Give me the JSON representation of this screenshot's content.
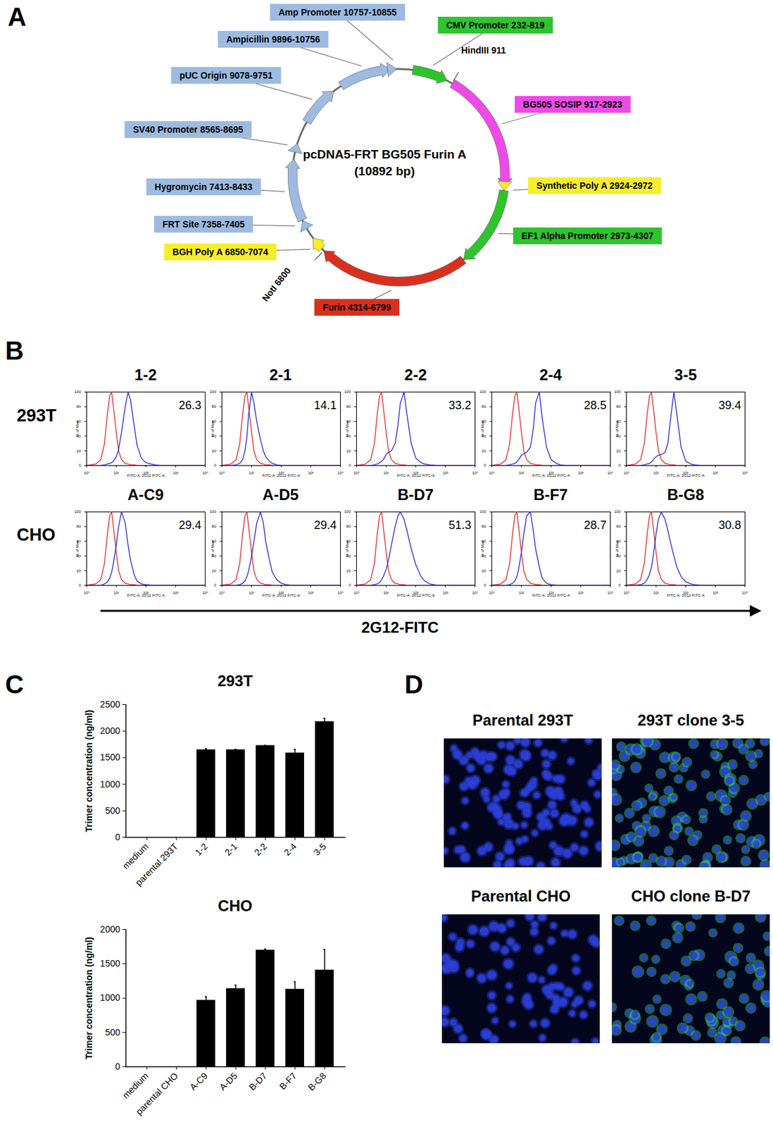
{
  "panel_labels": [
    "A",
    "B",
    "C",
    "D"
  ],
  "plasmid": {
    "name": "pcDNA5-FRT BG505 Furin A",
    "length": 10892,
    "length_label": "(10892 bp)",
    "features": [
      {
        "label": "CMV Promoter 232-819",
        "start": 232,
        "end": 819,
        "color": "#2ec42e"
      },
      {
        "label": "BG505 SOSIP 917-2923",
        "start": 917,
        "end": 2923,
        "color": "#ee4ae8"
      },
      {
        "label": "Synthetic Poly A 2924-2972",
        "start": 2924,
        "end": 2972,
        "color": "#f7ee2a"
      },
      {
        "label": "EF1 Alpha Promoter 2973-4307",
        "start": 2973,
        "end": 4307,
        "color": "#2ec42e"
      },
      {
        "label": "Furin 4314-6799",
        "start": 4314,
        "end": 6799,
        "color": "#d9301e"
      },
      {
        "label": "BGH Poly A 6850-7074",
        "start": 6850,
        "end": 7074,
        "color": "#f7ee2a"
      },
      {
        "label": "FRT Site 7358-7405",
        "start": 7358,
        "end": 7405,
        "color": "#9dbbe0"
      },
      {
        "label": "Hygromycin 7413-8433",
        "start": 7413,
        "end": 8433,
        "color": "#9dbbe0"
      },
      {
        "label": "SV40 Promoter 8565-8695",
        "start": 8565,
        "end": 8695,
        "color": "#9dbbe0"
      },
      {
        "label": "pUC Origin 9078-9751",
        "start": 9078,
        "end": 9751,
        "color": "#9dbbe0"
      },
      {
        "label": "Ampicillin 9896-10756",
        "start": 9896,
        "end": 10756,
        "color": "#9dbbe0"
      },
      {
        "label": "Amp Promoter 10757-10855",
        "start": 10757,
        "end": 10855,
        "color": "#9dbbe0"
      }
    ],
    "sites": [
      {
        "label": "HindIII 911",
        "position": 911
      },
      {
        "label": "NotI 6800",
        "position": 6800
      }
    ]
  },
  "flow": {
    "type": "line",
    "axis_title": "2G12-FITC",
    "xlabel": "FITC-A: 2G12 FITC-A",
    "ylabel": "% of Max",
    "log": "x",
    "xlim": [
      1,
      10000
    ],
    "xticks": [
      {
        "value": 1,
        "label": "10⁰"
      },
      {
        "value": 10,
        "label": "10¹"
      },
      {
        "value": 100,
        "label": "10²"
      },
      {
        "value": 1000,
        "label": "10³"
      },
      {
        "value": 10000,
        "label": "10⁴"
      }
    ],
    "ylim": [
      0,
      100
    ],
    "yticks": [
      0,
      20,
      40,
      60,
      80,
      100
    ],
    "x": [
      1,
      2,
      3,
      4,
      5,
      6,
      7,
      8,
      10,
      12,
      15,
      20,
      25,
      30,
      40,
      50,
      70,
      100,
      150,
      200,
      300,
      500,
      1000,
      10000
    ],
    "rows": [
      {
        "label": "293T",
        "panels": [
          {
            "title": "1-2",
            "value": 26.3,
            "series": [
              {
                "color": "#e0282a",
                "values": [
                  0,
                  2,
                  8,
                  30,
                  70,
                  95,
                  100,
                  80,
                  45,
                  20,
                  8,
                  3,
                  2,
                  1,
                  1,
                  0,
                  0,
                  0,
                  0,
                  0,
                  0,
                  0,
                  0,
                  0
                ]
              },
              {
                "color": "#2626d4",
                "values": [
                  0,
                  0,
                  0,
                  1,
                  2,
                  3,
                  4,
                  6,
                  12,
                  22,
                  45,
                  80,
                  100,
                  90,
                  55,
                  28,
                  10,
                  4,
                  2,
                  1,
                  0,
                  0,
                  0,
                  0
                ]
              }
            ]
          },
          {
            "title": "2-1",
            "value": 14.1,
            "series": [
              {
                "color": "#e0282a",
                "values": [
                  0,
                  2,
                  8,
                  30,
                  70,
                  95,
                  100,
                  80,
                  45,
                  20,
                  8,
                  3,
                  2,
                  1,
                  1,
                  0,
                  0,
                  0,
                  0,
                  0,
                  0,
                  0,
                  0,
                  0
                ]
              },
              {
                "color": "#2626d4",
                "values": [
                  0,
                  0,
                  1,
                  3,
                  8,
                  20,
                  40,
                  70,
                  100,
                  85,
                  60,
                  35,
                  20,
                  12,
                  6,
                  3,
                  1,
                  0,
                  0,
                  0,
                  0,
                  0,
                  0,
                  0
                ]
              }
            ]
          },
          {
            "title": "2-2",
            "value": 33.2,
            "series": [
              {
                "color": "#e0282a",
                "values": [
                  0,
                  2,
                  8,
                  30,
                  70,
                  95,
                  100,
                  80,
                  45,
                  20,
                  8,
                  3,
                  2,
                  1,
                  1,
                  0,
                  0,
                  0,
                  0,
                  0,
                  0,
                  0,
                  0,
                  0
                ]
              },
              {
                "color": "#2626d4",
                "values": [
                  0,
                  0,
                  0,
                  1,
                  2,
                  4,
                  6,
                  8,
                  15,
                  18,
                  20,
                  30,
                  55,
                  85,
                  100,
                  70,
                  30,
                  10,
                  4,
                  2,
                  1,
                  0,
                  0,
                  0
                ]
              }
            ]
          },
          {
            "title": "2-4",
            "value": 28.5,
            "series": [
              {
                "color": "#e0282a",
                "values": [
                  0,
                  2,
                  8,
                  30,
                  70,
                  95,
                  100,
                  80,
                  45,
                  20,
                  8,
                  3,
                  2,
                  1,
                  1,
                  0,
                  0,
                  0,
                  0,
                  0,
                  0,
                  0,
                  0,
                  0
                ]
              },
              {
                "color": "#2626d4",
                "values": [
                  0,
                  0,
                  0,
                  1,
                  2,
                  3,
                  5,
                  8,
                  14,
                  16,
                  18,
                  25,
                  50,
                  85,
                  100,
                  65,
                  25,
                  8,
                  3,
                  1,
                  0,
                  0,
                  0,
                  0
                ]
              }
            ]
          },
          {
            "title": "3-5",
            "value": 39.4,
            "series": [
              {
                "color": "#e0282a",
                "values": [
                  0,
                  2,
                  8,
                  30,
                  70,
                  95,
                  100,
                  80,
                  45,
                  20,
                  8,
                  3,
                  2,
                  1,
                  1,
                  0,
                  0,
                  0,
                  0,
                  0,
                  0,
                  0,
                  0,
                  0
                ]
              },
              {
                "color": "#2626d4",
                "values": [
                  0,
                  0,
                  0,
                  1,
                  2,
                  3,
                  5,
                  8,
                  12,
                  14,
                  15,
                  18,
                  30,
                  60,
                  100,
                  70,
                  25,
                  6,
                  2,
                  1,
                  0,
                  0,
                  0,
                  0
                ]
              }
            ]
          }
        ]
      },
      {
        "label": "CHO",
        "panels": [
          {
            "title": "A-C9",
            "value": 29.4,
            "series": [
              {
                "color": "#e0282a",
                "values": [
                  0,
                  2,
                  8,
                  30,
                  70,
                  95,
                  100,
                  80,
                  45,
                  20,
                  8,
                  3,
                  2,
                  1,
                  1,
                  0,
                  0,
                  0,
                  0,
                  0,
                  0,
                  0,
                  0,
                  0
                ]
              },
              {
                "color": "#2626d4",
                "values": [
                  0,
                  0,
                  0,
                  2,
                  5,
                  10,
                  18,
                  30,
                  55,
                  80,
                  100,
                  85,
                  55,
                  35,
                  15,
                  6,
                  2,
                  1,
                  0,
                  0,
                  0,
                  0,
                  0,
                  0
                ]
              }
            ]
          },
          {
            "title": "A-D5",
            "value": 29.4,
            "series": [
              {
                "color": "#e0282a",
                "values": [
                  0,
                  2,
                  8,
                  30,
                  70,
                  95,
                  100,
                  80,
                  45,
                  20,
                  8,
                  3,
                  2,
                  1,
                  1,
                  0,
                  0,
                  0,
                  0,
                  0,
                  0,
                  0,
                  0,
                  0
                ]
              },
              {
                "color": "#2626d4",
                "values": [
                  0,
                  0,
                  0,
                  1,
                  3,
                  6,
                  12,
                  20,
                  40,
                  60,
                  85,
                  100,
                  85,
                  60,
                  35,
                  18,
                  8,
                  3,
                  1,
                  0,
                  0,
                  0,
                  0,
                  0
                ]
              }
            ]
          },
          {
            "title": "B-D7",
            "value": 51.3,
            "series": [
              {
                "color": "#e0282a",
                "values": [
                  0,
                  2,
                  8,
                  30,
                  70,
                  95,
                  100,
                  80,
                  45,
                  20,
                  8,
                  3,
                  2,
                  1,
                  1,
                  0,
                  0,
                  0,
                  0,
                  0,
                  0,
                  0,
                  0,
                  0
                ]
              },
              {
                "color": "#2626d4",
                "values": [
                  0,
                  0,
                  0,
                  1,
                  2,
                  4,
                  8,
                  12,
                  22,
                  35,
                  55,
                  80,
                  95,
                  100,
                  90,
                  75,
                  50,
                  28,
                  12,
                  6,
                  2,
                  0,
                  0,
                  0
                ]
              }
            ]
          },
          {
            "title": "B-F7",
            "value": 28.7,
            "series": [
              {
                "color": "#e0282a",
                "values": [
                  0,
                  2,
                  8,
                  30,
                  70,
                  95,
                  100,
                  80,
                  45,
                  20,
                  8,
                  3,
                  2,
                  1,
                  1,
                  0,
                  0,
                  0,
                  0,
                  0,
                  0,
                  0,
                  0,
                  0
                ]
              },
              {
                "color": "#2626d4",
                "values": [
                  0,
                  0,
                  0,
                  1,
                  3,
                  6,
                  12,
                  22,
                  45,
                  70,
                  95,
                  100,
                  75,
                  50,
                  25,
                  10,
                  3,
                  1,
                  0,
                  0,
                  0,
                  0,
                  0,
                  0
                ]
              }
            ]
          },
          {
            "title": "B-G8",
            "value": 30.8,
            "series": [
              {
                "color": "#e0282a",
                "values": [
                  0,
                  2,
                  8,
                  30,
                  70,
                  95,
                  100,
                  80,
                  45,
                  20,
                  8,
                  3,
                  2,
                  1,
                  1,
                  0,
                  0,
                  0,
                  0,
                  0,
                  0,
                  0,
                  0,
                  0
                ]
              },
              {
                "color": "#2626d4",
                "values": [
                  0,
                  0,
                  1,
                  3,
                  8,
                  15,
                  25,
                  40,
                  70,
                  90,
                  100,
                  90,
                  75,
                  60,
                  40,
                  25,
                  12,
                  5,
                  2,
                  1,
                  0,
                  0,
                  0,
                  0
                ]
              }
            ]
          }
        ]
      }
    ]
  },
  "chart_data": [
    {
      "type": "bar",
      "title": "293T",
      "ylabel": "Trimer concentration (ng/ml)",
      "categories": [
        "medium",
        "parental 293T",
        "1-2",
        "2-1",
        "2-2",
        "2-4",
        "3-5"
      ],
      "values": [
        0,
        0,
        1650,
        1650,
        1730,
        1590,
        2180
      ],
      "errors": [
        null,
        null,
        20,
        10,
        5,
        70,
        60
      ],
      "color": "#000000",
      "ylim": [
        0,
        2500
      ],
      "yticks": [
        0,
        500,
        1000,
        1500,
        2000,
        2500
      ]
    },
    {
      "type": "bar",
      "title": "CHO",
      "ylabel": "Trimer concentration (ng/ml)",
      "categories": [
        "medium",
        "parental CHO",
        "A-C9",
        "A-D5",
        "B-D7",
        "B-F7",
        "B-G8"
      ],
      "values": [
        0,
        0,
        970,
        1140,
        1700,
        1130,
        1410
      ],
      "errors": [
        null,
        null,
        50,
        50,
        15,
        110,
        300
      ],
      "color": "#000000",
      "ylim": [
        0,
        2000
      ],
      "yticks": [
        0,
        500,
        1000,
        1500,
        2000
      ]
    }
  ],
  "images": [
    {
      "title": "Parental 293T",
      "color": "#2a3ccc"
    },
    {
      "title": "293T clone 3-5",
      "color": "#3ccf6a"
    },
    {
      "title": "Parental CHO",
      "color": "#2a3ccc"
    },
    {
      "title": "CHO clone B-D7",
      "color": "#3ccf6a"
    }
  ]
}
